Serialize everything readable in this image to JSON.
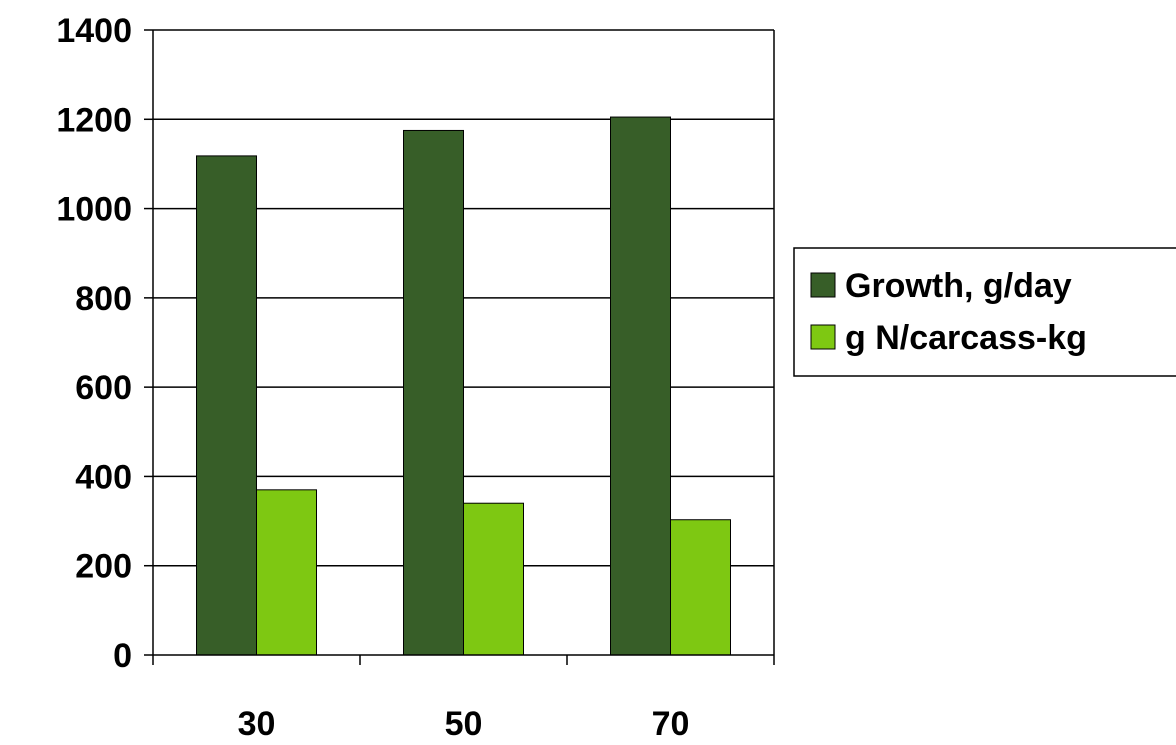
{
  "chart_data": {
    "type": "bar",
    "title": "",
    "xlabel": "",
    "ylabel": "",
    "categories": [
      "30",
      "50",
      "70"
    ],
    "series": [
      {
        "name": "Growth, g/day",
        "values": [
          1118,
          1175,
          1205
        ],
        "color": "#375e28"
      },
      {
        "name": "g N/carcass-kg",
        "values": [
          370,
          340,
          303
        ],
        "color": "#7ec812"
      }
    ],
    "ylim": [
      0,
      1400
    ],
    "yticks": [
      0,
      200,
      400,
      600,
      800,
      1000,
      1200,
      1400
    ],
    "grid": true,
    "legend_position": "right"
  }
}
